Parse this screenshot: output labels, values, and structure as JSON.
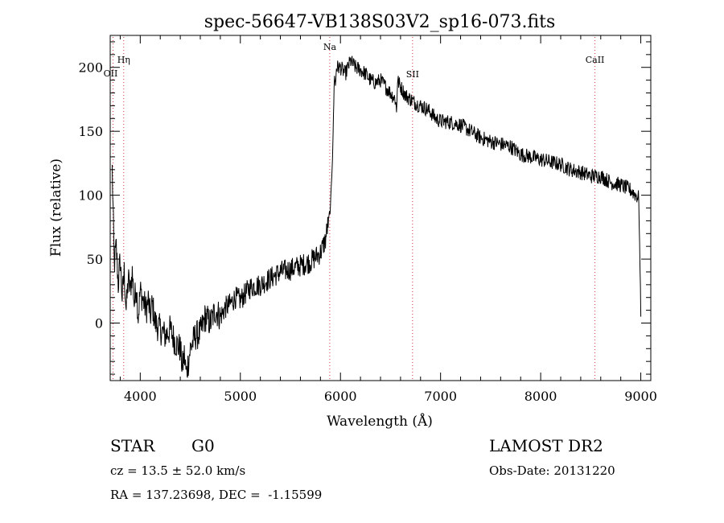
{
  "chart_data": {
    "type": "line",
    "title": "spec-56647-VB138S03V2_sp16-073.fits",
    "xlabel": "Wavelength (Å)",
    "ylabel": "Flux (relative)",
    "xlim": [
      3700,
      9100
    ],
    "ylim": [
      -45,
      225
    ],
    "xticks": [
      4000,
      5000,
      6000,
      7000,
      8000,
      9000
    ],
    "xtick_labels": [
      "4000",
      "5000",
      "6000",
      "7000",
      "8000",
      "9000"
    ],
    "yticks": [
      0,
      50,
      100,
      150,
      200
    ],
    "ytick_labels": [
      "0",
      "50",
      "100",
      "150",
      "200"
    ],
    "grid": false,
    "line_color": "#000000",
    "marker_color": "#cc3333",
    "lines": [
      {
        "label": "Hη",
        "x": 3835
      },
      {
        "label": "OII",
        "x": 3728
      },
      {
        "label": "Na",
        "x": 5893
      },
      {
        "label": "SII",
        "x": 6720
      },
      {
        "label": "CaII",
        "x": 8542
      }
    ],
    "series": [
      {
        "x": [
          3720,
          3740,
          3760,
          3780,
          3800,
          3820,
          3840,
          3860,
          3880,
          3900,
          3920,
          3940,
          3960,
          3980,
          4000,
          4020,
          4040,
          4060,
          4080,
          4100,
          4120,
          4150,
          4200,
          4250,
          4300,
          4350,
          4400,
          4420,
          4440,
          4460,
          4480,
          4500,
          4550,
          4600,
          4650,
          4700,
          4750,
          4800,
          4850,
          4900,
          4950,
          5000,
          5100,
          5200,
          5300,
          5400,
          5500,
          5600,
          5700,
          5800,
          5850,
          5900,
          5920,
          5930,
          5940,
          5950,
          5960,
          6000,
          6050,
          6100,
          6150,
          6200,
          6250,
          6300,
          6350,
          6400,
          6450,
          6500,
          6550,
          6560,
          6570,
          6600,
          6650,
          6700,
          6750,
          6800,
          6850,
          6900,
          6950,
          7000,
          7100,
          7200,
          7300,
          7400,
          7500,
          7600,
          7700,
          7800,
          7900,
          8000,
          8100,
          8200,
          8300,
          8400,
          8500,
          8600,
          8700,
          8800,
          8900,
          8950,
          8980,
          9000
        ],
        "y": [
          120,
          45,
          60,
          30,
          50,
          20,
          40,
          10,
          35,
          25,
          40,
          15,
          30,
          5,
          25,
          20,
          15,
          10,
          18,
          5,
          15,
          0,
          -5,
          -10,
          -5,
          -15,
          -20,
          -35,
          -25,
          -40,
          -30,
          -20,
          -10,
          -8,
          5,
          0,
          10,
          5,
          12,
          15,
          20,
          18,
          28,
          30,
          35,
          40,
          42,
          45,
          48,
          55,
          65,
          90,
          130,
          160,
          195,
          185,
          200,
          200,
          195,
          205,
          200,
          198,
          195,
          190,
          188,
          190,
          185,
          180,
          175,
          165,
          190,
          185,
          178,
          175,
          172,
          170,
          168,
          165,
          160,
          158,
          157,
          155,
          150,
          145,
          142,
          140,
          138,
          132,
          130,
          128,
          126,
          124,
          120,
          118,
          115,
          115,
          110,
          108,
          104,
          100,
          98,
          5
        ]
      }
    ]
  },
  "info": {
    "object_class": "STAR",
    "subclass": "G0",
    "survey": "LAMOST DR2",
    "redshift": "cz = 13.5 ± 52.0 km/s",
    "obs_date": "Obs-Date: 20131220",
    "coords": "RA = 137.23698, DEC =  -1.15599"
  }
}
